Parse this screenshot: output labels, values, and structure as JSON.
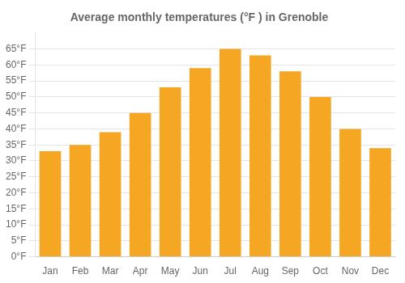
{
  "chart_data": {
    "type": "bar",
    "title": "Average monthly temperatures (°F ) in Grenoble",
    "categories": [
      "Jan",
      "Feb",
      "Mar",
      "Apr",
      "May",
      "Jun",
      "Jul",
      "Aug",
      "Sep",
      "Oct",
      "Nov",
      "Dec"
    ],
    "values": [
      33,
      35,
      39,
      45,
      53,
      59,
      65,
      63,
      58,
      50,
      40,
      34
    ],
    "color": "#F5A623",
    "ylim": [
      0,
      70
    ],
    "yticks": [
      {
        "value": 0,
        "label": "0°F"
      },
      {
        "value": 5,
        "label": "5°F"
      },
      {
        "value": 10,
        "label": "10°F"
      },
      {
        "value": 15,
        "label": "15°F"
      },
      {
        "value": 20,
        "label": "20°F"
      },
      {
        "value": 25,
        "label": "25°F"
      },
      {
        "value": 30,
        "label": "30°F"
      },
      {
        "value": 35,
        "label": "35°F"
      },
      {
        "value": 40,
        "label": "40°F"
      },
      {
        "value": 45,
        "label": "45°F"
      },
      {
        "value": 50,
        "label": "50°F"
      },
      {
        "value": 55,
        "label": "55°F"
      },
      {
        "value": 60,
        "label": "60°F"
      },
      {
        "value": 65,
        "label": "65°F"
      }
    ],
    "grid": true
  }
}
